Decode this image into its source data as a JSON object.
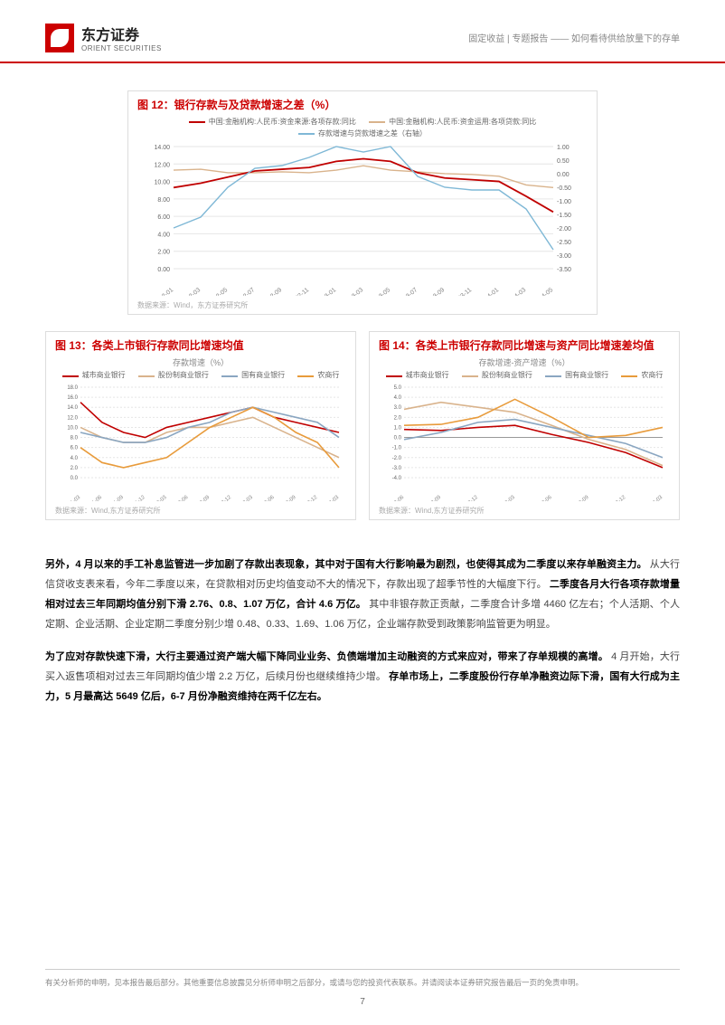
{
  "header": {
    "logo_cn": "东方证券",
    "logo_en": "ORIENT SECURITIES",
    "breadcrumb": "固定收益 | 专题报告 —— 如何看待供给放量下的存单"
  },
  "chart12": {
    "title": "图 12：银行存款与及贷款增速之差（%）",
    "legend": [
      {
        "label": "中国:金融机构:人民币:资金来源:各项存款:同比",
        "color": "#c00000"
      },
      {
        "label": "中国:金融机构:人民币:资金运用:各项贷款:同比",
        "color": "#d9b38c"
      },
      {
        "label": "存款增速与贷款增速之差（右轴）",
        "color": "#7fb8d6"
      }
    ],
    "x_labels": [
      "2022-01",
      "2022-03",
      "2022-05",
      "2022-07",
      "2022-09",
      "2022-11",
      "2023-01",
      "2023-03",
      "2023-05",
      "2023-07",
      "2023-09",
      "2023-11",
      "2024-01",
      "2024-03",
      "2024-05"
    ],
    "left_axis": {
      "min": 0,
      "max": 14,
      "step": 2
    },
    "right_axis": {
      "min": -3.5,
      "max": 1.0,
      "step": 0.5
    },
    "series_deposit": [
      9.3,
      9.8,
      10.5,
      11.2,
      11.4,
      11.6,
      12.3,
      12.6,
      12.3,
      11.0,
      10.4,
      10.2,
      10.0,
      8.3,
      6.5
    ],
    "series_loan": [
      11.3,
      11.4,
      11.0,
      11.0,
      11.1,
      11.0,
      11.3,
      11.8,
      11.3,
      11.1,
      10.9,
      10.8,
      10.6,
      9.6,
      9.3
    ],
    "series_diff": [
      -2.0,
      -1.6,
      -0.5,
      0.2,
      0.3,
      0.6,
      1.0,
      0.8,
      1.0,
      -0.1,
      -0.5,
      -0.6,
      -0.6,
      -1.3,
      -2.8
    ],
    "source": "数据来源：Wind，东方证券研究所",
    "bg": "#ffffff",
    "grid": "#e6e6e6",
    "fontsize_axis": 7
  },
  "chart13": {
    "title": "图 13：各类上市银行存款同比增速均值",
    "subtitle": "存款增速（%）",
    "legend": [
      {
        "label": "城市商业银行",
        "color": "#c00000"
      },
      {
        "label": "股份制商业银行",
        "color": "#d9b38c"
      },
      {
        "label": "国有商业银行",
        "color": "#8aa6c1"
      },
      {
        "label": "农商行",
        "color": "#e89b3b"
      }
    ],
    "x_labels": [
      "2021-03",
      "2021-06",
      "2021-09",
      "2021-12",
      "2022-03",
      "2022-06",
      "2022-09",
      "2022-12",
      "2023-03",
      "2023-06",
      "2023-09",
      "2023-12",
      "2024-03"
    ],
    "y_axis": {
      "min": 0,
      "max": 18,
      "step": 2
    },
    "series": {
      "city": [
        15,
        11,
        9,
        8,
        10,
        11,
        12,
        13,
        14,
        12,
        11,
        10,
        9
      ],
      "joint": [
        10,
        8,
        7,
        7,
        9,
        10,
        10,
        11,
        12,
        10,
        8,
        6,
        4
      ],
      "state": [
        9,
        8,
        7,
        7,
        8,
        10,
        11,
        13,
        14,
        13,
        12,
        11,
        8
      ],
      "rural": [
        6,
        3,
        2,
        3,
        4,
        7,
        10,
        12,
        14,
        12,
        9,
        7,
        2
      ]
    },
    "source": "数据来源：Wind,东方证券研究所",
    "bg": "#ffffff",
    "grid": "#e6e6e6",
    "fontsize_axis": 6
  },
  "chart14": {
    "title": "图 14：各类上市银行存款同比增速与资产同比增速差均值",
    "subtitle": "存款增速-资产增速（%）",
    "legend": [
      {
        "label": "城市商业银行",
        "color": "#c00000"
      },
      {
        "label": "股份制商业银行",
        "color": "#d9b38c"
      },
      {
        "label": "国有商业银行",
        "color": "#8aa6c1"
      },
      {
        "label": "农商行",
        "color": "#e89b3b"
      }
    ],
    "x_labels": [
      "2022-06",
      "2022-09",
      "2022-12",
      "2023-03",
      "2023-06",
      "2023-09",
      "2023-12",
      "2024-03"
    ],
    "y_axis": {
      "min": -4,
      "max": 5,
      "step": 1
    },
    "series": {
      "city": [
        0.8,
        0.7,
        1.0,
        1.2,
        0.3,
        -0.5,
        -1.5,
        -3.0
      ],
      "joint": [
        2.8,
        3.5,
        3.0,
        2.5,
        1.2,
        -0.2,
        -1.2,
        -2.8
      ],
      "state": [
        -0.2,
        0.5,
        1.5,
        1.8,
        1.0,
        0.2,
        -0.6,
        -2.0
      ],
      "rural": [
        1.2,
        1.3,
        2.0,
        3.8,
        2.0,
        0.0,
        0.2,
        1.0
      ]
    },
    "source": "数据来源：Wind,东方证券研究所",
    "bg": "#ffffff",
    "grid": "#e6e6e6",
    "fontsize_axis": 6
  },
  "paragraphs": {
    "p1_bold1": "另外，4 月以来的手工补息监管进一步加剧了存款出表现象，其中对于国有大行影响最为剧烈，也使得其成为二季度以来存单融资主力。",
    "p1_rest": "从大行信贷收支表来看，今年二季度以来，在贷款相对历史均值变动不大的情况下，存款出现了超季节性的大幅度下行。",
    "p1_bold2": "二季度各月大行各项存款增量相对过去三年同期均值分别下滑 2.76、0.8、1.07 万亿，合计 4.6 万亿。",
    "p1_tail": "其中非银存款正贡献，二季度合计多增 4460 亿左右；个人活期、个人定期、企业活期、企业定期二季度分别少增 0.48、0.33、1.69、1.06 万亿，企业端存款受到政策影响监管更为明显。",
    "p2_bold1": "为了应对存款快速下滑，大行主要通过资产端大幅下降同业业务、负债端增加主动融资的方式来应对，带来了存单规模的高增。",
    "p2_rest1": "4 月开始，大行买入返售项相对过去三年同期均值少增 2.2 万亿，后续月份也继续维持少增。",
    "p2_bold2": "存单市场上，二季度股份行存单净融资边际下滑，国有大行成为主力，5 月最高达 5649 亿后，6-7 月份净融资维持在两千亿左右。"
  },
  "footer": {
    "disclaimer": "有关分析师的申明，见本报告最后部分。其他重要信息披露见分析师申明之后部分，或请与您的投资代表联系。并请阅读本证券研究报告最后一页的免责申明。",
    "page": "7"
  }
}
